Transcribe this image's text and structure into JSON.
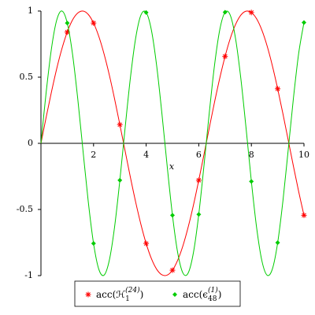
{
  "chart_data": {
    "type": "line",
    "x_label": "x",
    "xlim": [
      0,
      10
    ],
    "ylim": [
      -1,
      1
    ],
    "xticks": [
      2,
      4,
      6,
      8,
      10
    ],
    "yticks": [
      -1,
      -0.5,
      0,
      0.5,
      1
    ],
    "x": [
      0,
      0.2,
      0.4,
      0.6,
      0.8,
      1,
      1.2,
      1.4,
      1.6,
      1.8,
      2,
      2.2,
      2.4,
      2.6,
      2.8,
      3,
      3.2,
      3.4,
      3.6,
      3.8,
      4,
      4.2,
      4.4,
      4.6,
      4.8,
      5,
      5.2,
      5.4,
      5.6,
      5.8,
      6,
      6.2,
      6.4,
      6.6,
      6.8,
      7,
      7.2,
      7.4,
      7.6,
      7.8,
      8,
      8.2,
      8.4,
      8.6,
      8.8,
      9,
      9.2,
      9.4,
      9.6,
      9.8,
      10
    ],
    "point_x": [
      1,
      2,
      3,
      4,
      5,
      6,
      7,
      8,
      9,
      10
    ],
    "series": [
      {
        "name": "acc(ℋ",
        "name_sub": "1",
        "name_sup": "(24)",
        "name_end": ")",
        "color": "#ff0000",
        "marker": "star",
        "values": [
          0,
          0.199,
          0.389,
          0.565,
          0.717,
          0.841,
          0.932,
          0.985,
          1.0,
          0.974,
          0.909,
          0.808,
          0.675,
          0.516,
          0.335,
          0.141,
          -0.058,
          -0.256,
          -0.443,
          -0.612,
          -0.757,
          -0.872,
          -0.952,
          -0.994,
          -0.996,
          -0.959,
          -0.883,
          -0.773,
          -0.631,
          -0.465,
          -0.279,
          -0.083,
          0.117,
          0.312,
          0.494,
          0.657,
          0.794,
          0.899,
          0.969,
          0.999,
          0.989,
          0.941,
          0.855,
          0.735,
          0.585,
          0.412,
          0.223,
          0.025,
          -0.174,
          -0.366,
          -0.544
        ],
        "point_values": [
          0.841,
          0.909,
          0.141,
          -0.757,
          -0.959,
          -0.279,
          0.657,
          0.989,
          0.412,
          -0.544
        ]
      },
      {
        "name": "acc(ϵ",
        "name_sub": "48",
        "name_sup": "(1)",
        "name_end": ")",
        "color": "#00cc00",
        "marker": "diamond",
        "values": [
          0,
          0.389,
          0.717,
          0.932,
          1.0,
          0.909,
          0.675,
          0.335,
          -0.058,
          -0.443,
          -0.757,
          -0.952,
          -0.996,
          -0.883,
          -0.631,
          -0.279,
          0.117,
          0.494,
          0.794,
          0.969,
          0.989,
          0.855,
          0.585,
          0.223,
          -0.174,
          -0.544,
          -0.828,
          -0.981,
          -0.979,
          -0.823,
          -0.537,
          -0.165,
          0.231,
          0.592,
          0.86,
          0.991,
          0.967,
          0.79,
          0.489,
          0.111,
          -0.288,
          -0.638,
          -0.888,
          -0.997,
          -0.949,
          -0.751,
          -0.435,
          -0.05,
          0.343,
          0.682,
          0.913
        ],
        "point_values": [
          0.909,
          -0.757,
          -0.279,
          0.989,
          -0.544,
          -0.537,
          0.991,
          -0.288,
          -0.751,
          0.913
        ]
      }
    ]
  }
}
